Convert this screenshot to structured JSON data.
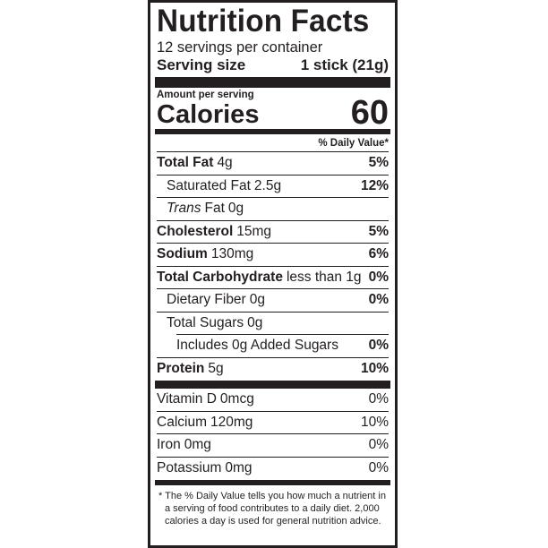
{
  "title": "Nutrition Facts",
  "servings_per_container": "12 servings per container",
  "serving_size": {
    "label": "Serving size",
    "value": "1 stick (21g)"
  },
  "amount_per_serving": "Amount per serving",
  "calories": {
    "label": "Calories",
    "value": "60"
  },
  "daily_value_header": "% Daily Value*",
  "nutrients": [
    {
      "name": "Total Fat",
      "amount": "4g",
      "dv": "5%"
    },
    {
      "name": "Saturated Fat",
      "amount": "2.5g",
      "dv": "12%"
    },
    {
      "name_italic": "Trans",
      "name": "Fat",
      "amount": "0g",
      "dv": ""
    },
    {
      "name": "Cholesterol",
      "amount": "15mg",
      "dv": "5%"
    },
    {
      "name": "Sodium",
      "amount": "130mg",
      "dv": "6%"
    },
    {
      "name": "Total Carbohydrate",
      "amount": "less than 1g",
      "dv": "0%"
    },
    {
      "name": "Dietary Fiber",
      "amount": "0g",
      "dv": "0%"
    },
    {
      "name": "Total Sugars",
      "amount": "0g",
      "dv": ""
    },
    {
      "name": "Includes 0g Added Sugars",
      "amount": "",
      "dv": "0%"
    },
    {
      "name": "Protein",
      "amount": "5g",
      "dv": "10%"
    }
  ],
  "vitamins": [
    {
      "name": "Vitamin D",
      "amount": "0mcg",
      "dv": "0%"
    },
    {
      "name": "Calcium",
      "amount": "120mg",
      "dv": "10%"
    },
    {
      "name": "Iron",
      "amount": "0mg",
      "dv": "0%"
    },
    {
      "name": "Potassium",
      "amount": "0mg",
      "dv": "0%"
    }
  ],
  "footnote": "* The % Daily Value tells you how much a nutrient in a serving of food contributes to a daily diet. 2,000 calories a day is used for general nutrition advice."
}
